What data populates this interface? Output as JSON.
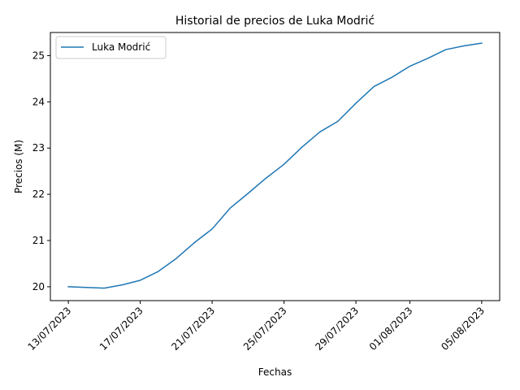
{
  "chart_data": {
    "type": "line",
    "title": "Historial de precios de Luka Modrić",
    "xlabel": "Fechas",
    "ylabel": "Precios (M)",
    "ylim": [
      19.7,
      25.5
    ],
    "yticks": [
      20,
      21,
      22,
      23,
      24,
      25
    ],
    "xticks": [
      "13/07/2023",
      "17/07/2023",
      "21/07/2023",
      "25/07/2023",
      "29/07/2023",
      "01/08/2023",
      "05/08/2023"
    ],
    "xlim": [
      "12/07/2023",
      "06/08/2023"
    ],
    "grid": false,
    "legend_position": "top-left",
    "series": [
      {
        "name": "Luka Modrić",
        "color": "#1f77b4",
        "points": [
          {
            "x": "13/07/2023",
            "y": 20.0
          },
          {
            "x": "15/07/2023",
            "y": 19.97
          },
          {
            "x": "16/07/2023",
            "y": 20.04
          },
          {
            "x": "17/07/2023",
            "y": 20.14
          },
          {
            "x": "18/07/2023",
            "y": 20.33
          },
          {
            "x": "19/07/2023",
            "y": 20.61
          },
          {
            "x": "20/07/2023",
            "y": 20.95
          },
          {
            "x": "21/07/2023",
            "y": 21.25
          },
          {
            "x": "22/07/2023",
            "y": 21.7
          },
          {
            "x": "23/07/2023",
            "y": 22.02
          },
          {
            "x": "24/07/2023",
            "y": 22.35
          },
          {
            "x": "25/07/2023",
            "y": 22.65
          },
          {
            "x": "26/07/2023",
            "y": 23.02
          },
          {
            "x": "27/07/2023",
            "y": 23.35
          },
          {
            "x": "28/07/2023",
            "y": 23.58
          },
          {
            "x": "29/07/2023",
            "y": 23.97
          },
          {
            "x": "30/07/2023",
            "y": 24.33
          },
          {
            "x": "31/07/2023",
            "y": 24.53
          },
          {
            "x": "01/08/2023",
            "y": 24.77
          },
          {
            "x": "02/08/2023",
            "y": 24.94
          },
          {
            "x": "03/08/2023",
            "y": 25.13
          },
          {
            "x": "04/08/2023",
            "y": 25.21
          },
          {
            "x": "05/08/2023",
            "y": 25.27
          }
        ]
      }
    ]
  }
}
